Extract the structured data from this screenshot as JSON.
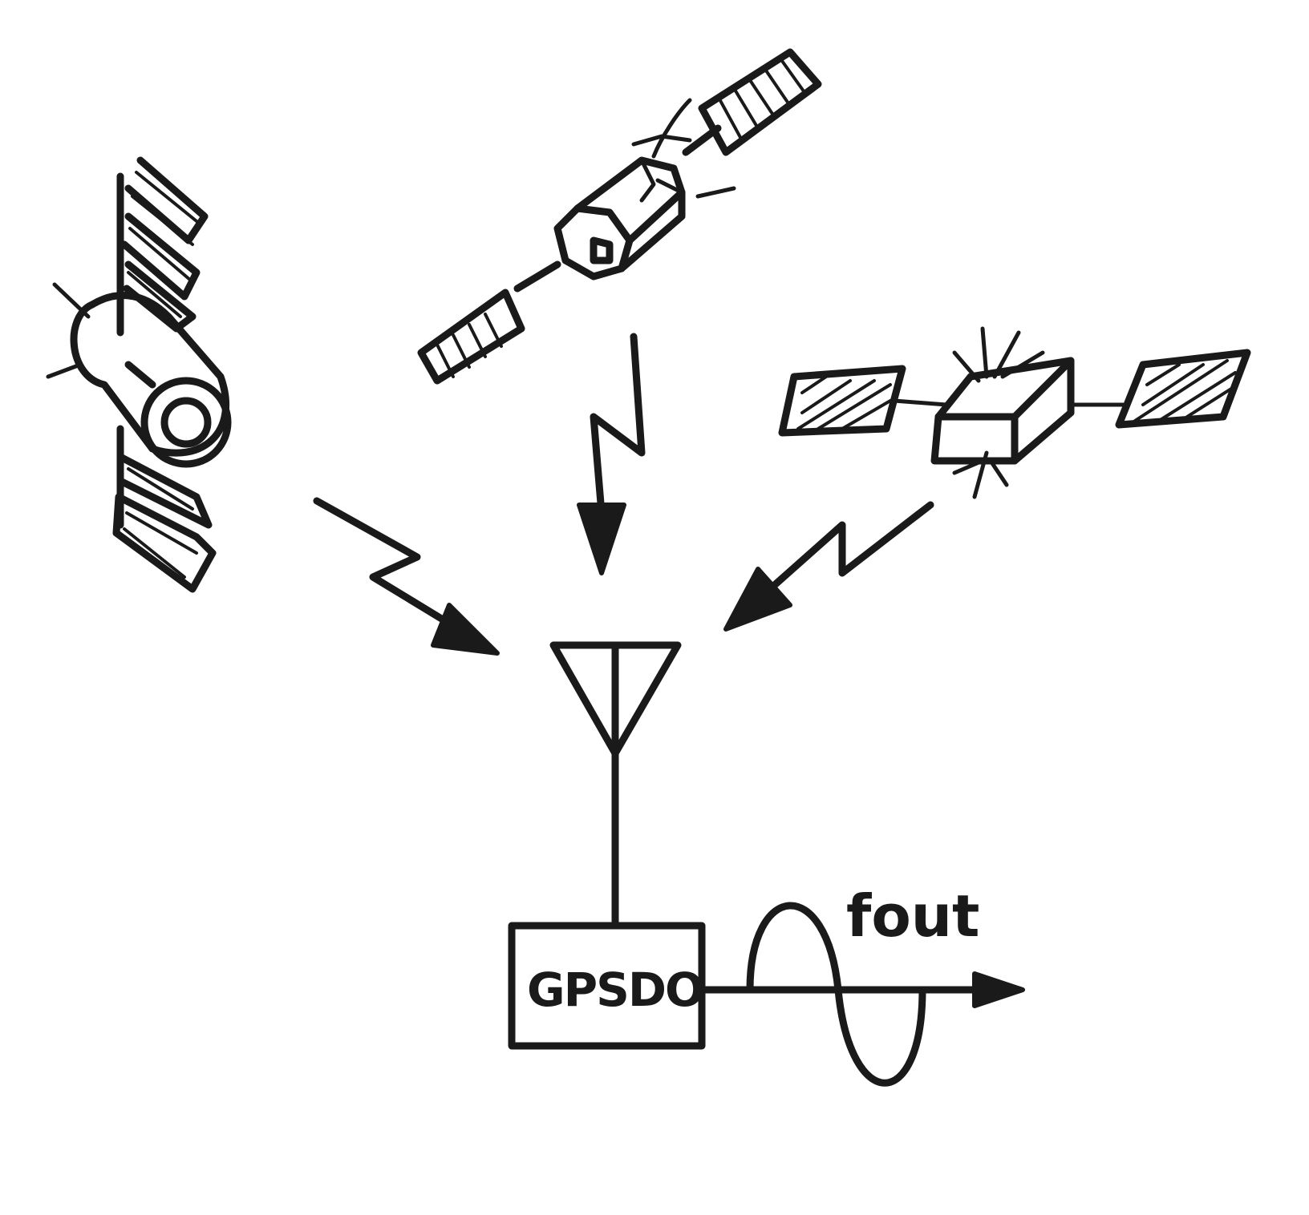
{
  "diagram": {
    "box_label": "GPSDO",
    "output_label": "fout",
    "ink_color": "#1a1a1a",
    "paper_color": "#ffffff"
  }
}
